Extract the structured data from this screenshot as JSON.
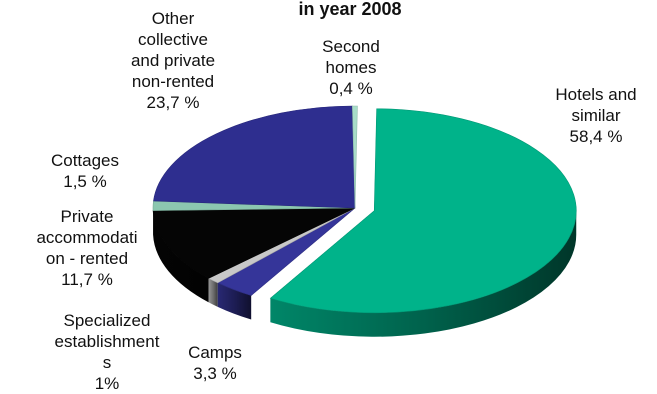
{
  "chart_data": {
    "type": "pie",
    "title": "in year 2008",
    "slices": [
      {
        "name": "Hotels and similar",
        "value": 58.4,
        "label": "Hotels and\nsimilar\n58,4 %",
        "color": "#00b38a"
      },
      {
        "name": "Camps",
        "value": 3.3,
        "label": "Camps\n3,3 %",
        "color": "#353599"
      },
      {
        "name": "Specialized establishments",
        "value": 1.0,
        "label": "Specialized\nestablishment\ns\n1%",
        "color": "#c8c8c8"
      },
      {
        "name": "Private accommodation - rented",
        "value": 11.7,
        "label": "Private\naccommodati\non - rented\n11,7 %",
        "color": "#050505"
      },
      {
        "name": "Cottages",
        "value": 1.5,
        "label": "Cottages\n1,5 %",
        "color": "#8cc7b0"
      },
      {
        "name": "Other collective and private non-rented",
        "value": 23.7,
        "label": "Other\ncollective\nand private\nnon-rented\n23,7 %",
        "color": "#2e2e8f"
      },
      {
        "name": "Second homes",
        "value": 0.4,
        "label": "Second\nhomes\n0,4 %",
        "color": "#a8dcc8"
      }
    ],
    "legend": "none",
    "style": "3d-exploded"
  }
}
